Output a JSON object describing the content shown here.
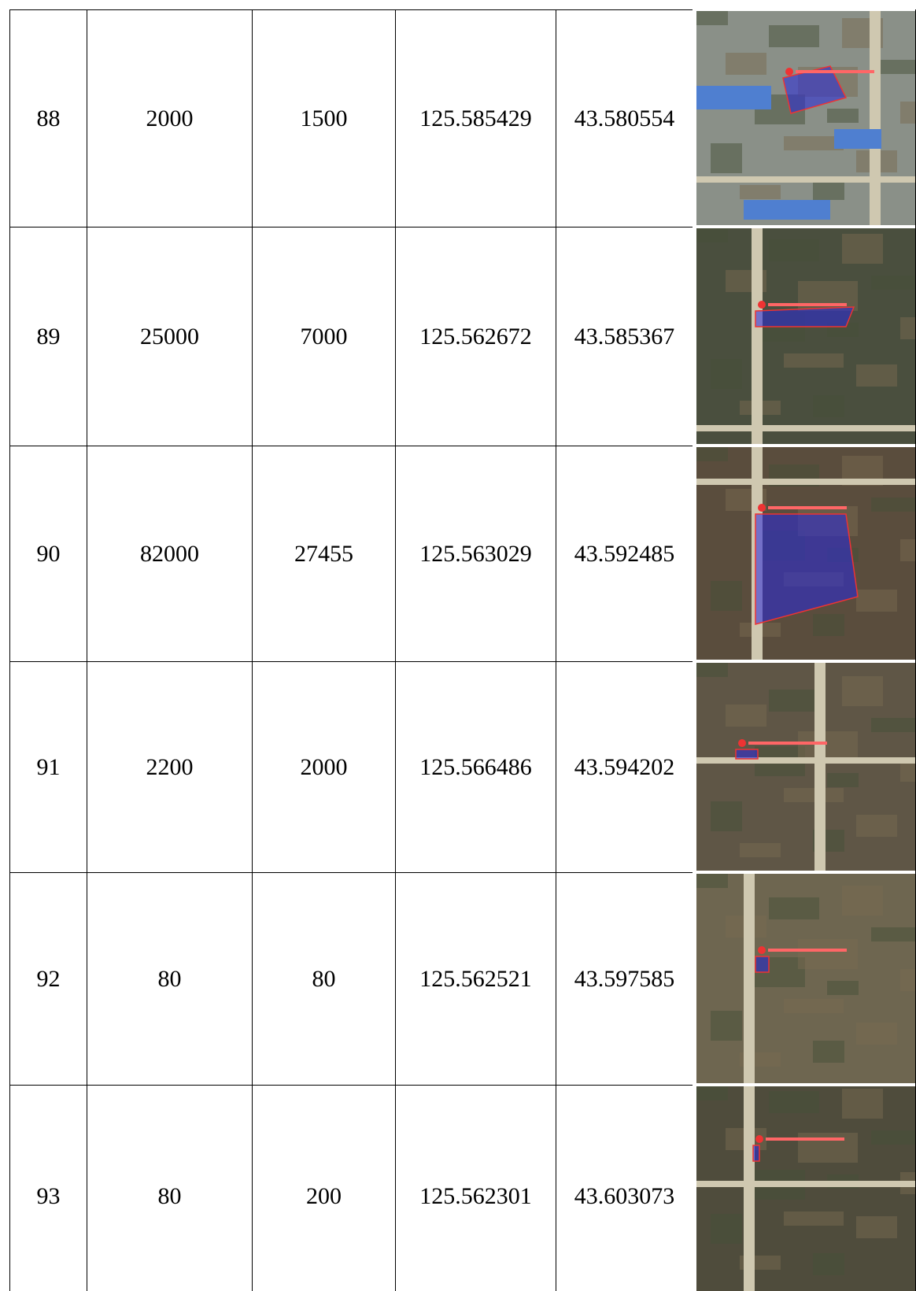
{
  "table": {
    "rows": [
      [
        "88",
        "2000",
        "1500",
        "125.585429",
        "43.580554"
      ],
      [
        "89",
        "25000",
        "7000",
        "125.562672",
        "43.585367"
      ],
      [
        "90",
        "82000",
        "27455",
        "125.563029",
        "43.592485"
      ],
      [
        "91",
        "2200",
        "2000",
        "125.566486",
        "43.594202"
      ],
      [
        "92",
        "80",
        "80",
        "125.562521",
        "43.597585"
      ],
      [
        "93",
        "80",
        "200",
        "125.562301",
        "43.603073"
      ]
    ]
  }
}
